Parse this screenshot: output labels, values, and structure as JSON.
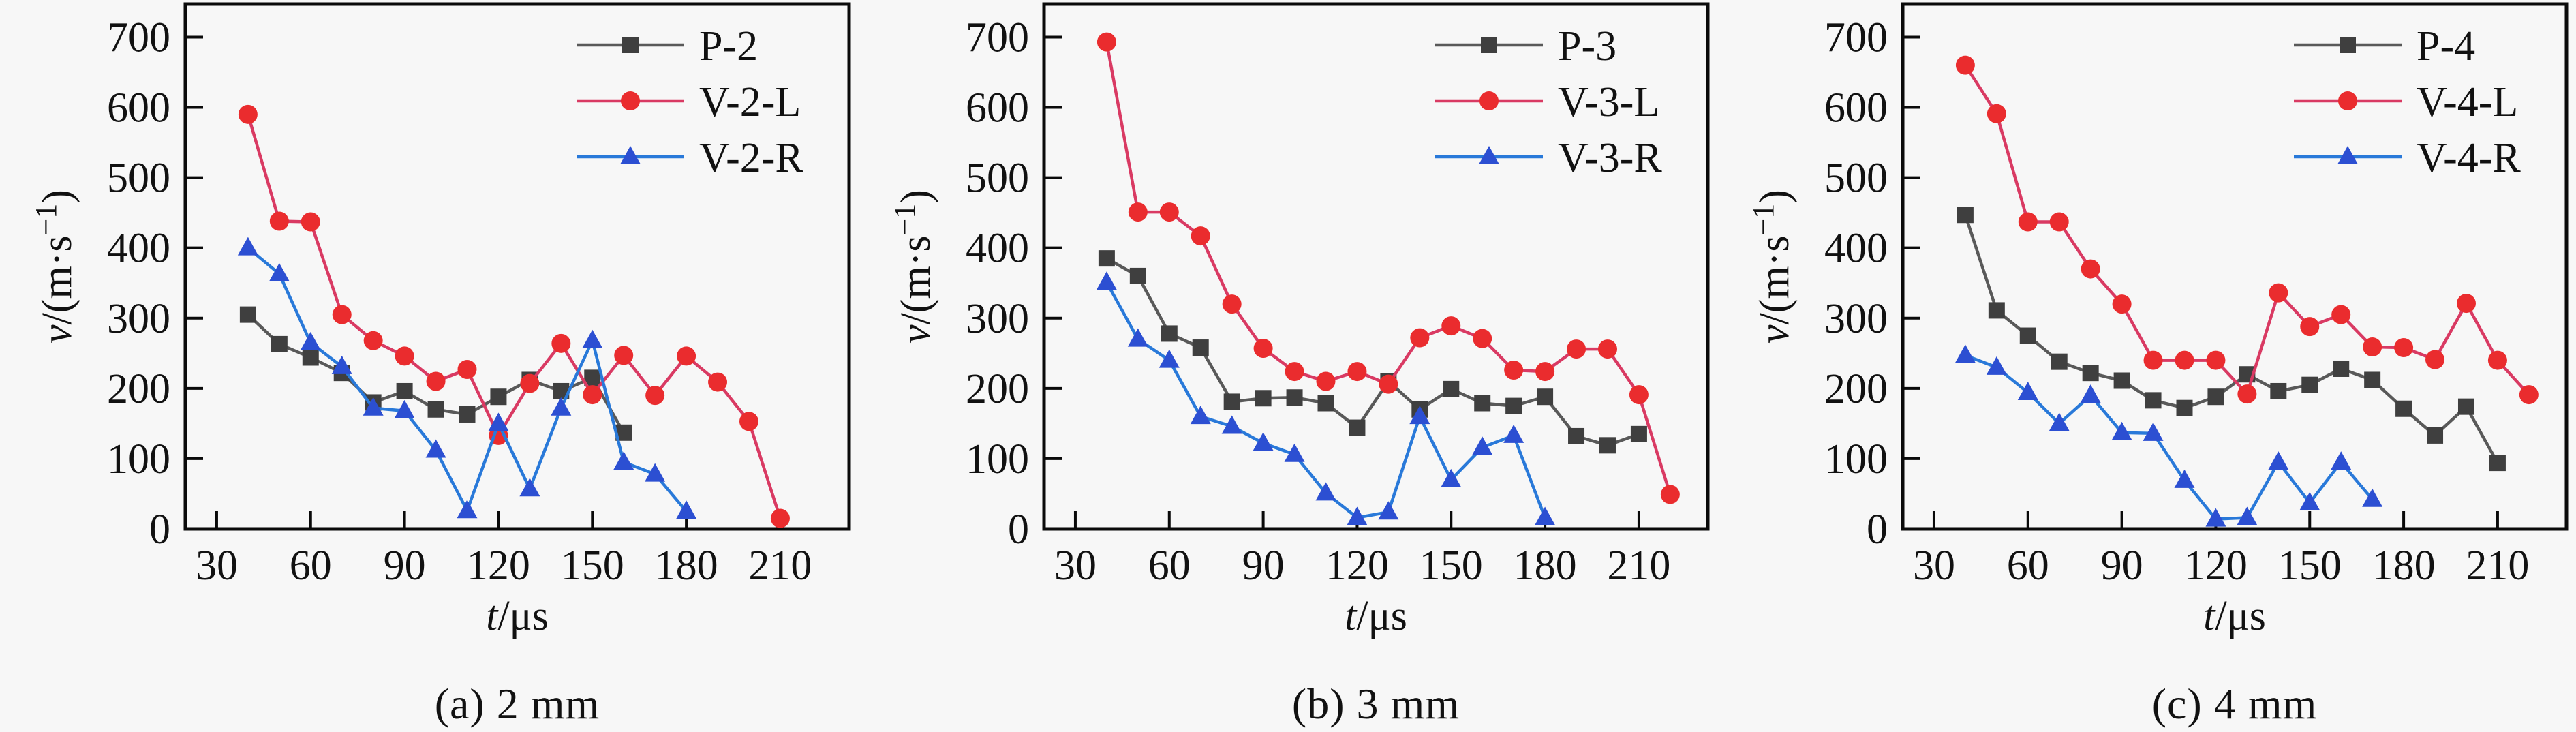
{
  "page": {
    "background": "#f7f7f7",
    "axis_color": "#0a0a0a",
    "text_color": "#111111"
  },
  "chart_data": [
    {
      "id": "a",
      "type": "line",
      "caption": "(a) 2 mm",
      "xlabel": "t/μs",
      "ylabel": "v/(m·s⁻¹)",
      "xlim": [
        20,
        232
      ],
      "ylim": [
        0,
        747
      ],
      "xticks": [
        30,
        60,
        90,
        120,
        150,
        180,
        210
      ],
      "yticks": [
        0,
        100,
        200,
        300,
        400,
        500,
        600,
        700
      ],
      "grid": false,
      "legend_position": "top-right",
      "series": [
        {
          "name": "P-2",
          "marker": "square",
          "line_color": "#595959",
          "marker_color": "#3f3f3f",
          "x": [
            40,
            50,
            60,
            70,
            80,
            90,
            100,
            110,
            120,
            130,
            140,
            150,
            160
          ],
          "y": [
            305,
            263,
            244,
            222,
            180,
            196,
            170,
            163,
            188,
            212,
            196,
            215,
            137
          ]
        },
        {
          "name": "V-2-L",
          "marker": "circle",
          "line_color": "#d93a63",
          "marker_color": "#ea2c2e",
          "x": [
            40,
            50,
            60,
            70,
            80,
            90,
            100,
            110,
            120,
            130,
            140,
            150,
            160,
            170,
            180,
            190,
            200,
            210
          ],
          "y": [
            590,
            438,
            437,
            305,
            268,
            246,
            210,
            227,
            133,
            207,
            264,
            191,
            247,
            190,
            246,
            209,
            153,
            15
          ]
        },
        {
          "name": "V-2-R",
          "marker": "triangle",
          "line_color": "#2979d9",
          "marker_color": "#2c4fd2",
          "x": [
            40,
            50,
            60,
            70,
            80,
            90,
            100,
            110,
            120,
            130,
            140,
            150,
            160,
            170,
            180
          ],
          "y": [
            400,
            363,
            265,
            231,
            172,
            168,
            112,
            26,
            150,
            57,
            172,
            268,
            95,
            78,
            25
          ]
        }
      ]
    },
    {
      "id": "b",
      "type": "line",
      "caption": "(b) 3 mm",
      "xlabel": "t/μs",
      "ylabel": "v/(m·s⁻¹)",
      "xlim": [
        20,
        232
      ],
      "ylim": [
        0,
        747
      ],
      "xticks": [
        30,
        60,
        90,
        120,
        150,
        180,
        210
      ],
      "yticks": [
        0,
        100,
        200,
        300,
        400,
        500,
        600,
        700
      ],
      "grid": false,
      "legend_position": "top-right",
      "series": [
        {
          "name": "P-3",
          "marker": "square",
          "line_color": "#595959",
          "marker_color": "#3f3f3f",
          "x": [
            40,
            50,
            60,
            70,
            80,
            90,
            100,
            110,
            120,
            130,
            140,
            150,
            160,
            170,
            180,
            190,
            200,
            210
          ],
          "y": [
            385,
            360,
            278,
            258,
            181,
            186,
            187,
            179,
            144,
            210,
            170,
            199,
            179,
            175,
            188,
            132,
            119,
            135
          ]
        },
        {
          "name": "V-3-L",
          "marker": "circle",
          "line_color": "#d93a63",
          "marker_color": "#ea2c2e",
          "x": [
            40,
            50,
            60,
            70,
            80,
            90,
            100,
            110,
            120,
            130,
            140,
            150,
            160,
            170,
            180,
            190,
            200,
            210,
            220
          ],
          "y": [
            693,
            451,
            451,
            417,
            320,
            257,
            224,
            210,
            224,
            206,
            272,
            289,
            271,
            226,
            224,
            256,
            256,
            191,
            49
          ]
        },
        {
          "name": "V-3-R",
          "marker": "triangle",
          "line_color": "#2979d9",
          "marker_color": "#2c4fd2",
          "x": [
            40,
            50,
            60,
            70,
            80,
            90,
            100,
            110,
            120,
            130,
            140,
            150,
            160,
            170,
            180
          ],
          "y": [
            351,
            270,
            240,
            160,
            146,
            122,
            106,
            51,
            16,
            24,
            160,
            70,
            116,
            133,
            16
          ]
        }
      ]
    },
    {
      "id": "c",
      "type": "line",
      "caption": "(c) 4 mm",
      "xlabel": "t/μs",
      "ylabel": "v/(m·s⁻¹)",
      "xlim": [
        20,
        232
      ],
      "ylim": [
        0,
        747
      ],
      "xticks": [
        30,
        60,
        90,
        120,
        150,
        180,
        210
      ],
      "yticks": [
        0,
        100,
        200,
        300,
        400,
        500,
        600,
        700
      ],
      "grid": false,
      "legend_position": "top-right",
      "series": [
        {
          "name": "P-4",
          "marker": "square",
          "line_color": "#595959",
          "marker_color": "#3f3f3f",
          "x": [
            40,
            50,
            60,
            70,
            80,
            90,
            100,
            110,
            120,
            130,
            140,
            150,
            160,
            170,
            180,
            190,
            200,
            210
          ],
          "y": [
            447,
            311,
            275,
            238,
            222,
            211,
            183,
            172,
            188,
            220,
            196,
            205,
            228,
            212,
            171,
            133,
            174,
            94
          ]
        },
        {
          "name": "V-4-L",
          "marker": "circle",
          "line_color": "#d93a63",
          "marker_color": "#ea2c2e",
          "x": [
            40,
            50,
            60,
            70,
            80,
            90,
            100,
            110,
            120,
            130,
            140,
            150,
            160,
            170,
            180,
            190,
            200,
            210,
            220
          ],
          "y": [
            660,
            591,
            437,
            437,
            370,
            320,
            240,
            240,
            240,
            192,
            336,
            288,
            305,
            259,
            258,
            241,
            321,
            240,
            191
          ]
        },
        {
          "name": "V-4-R",
          "marker": "triangle",
          "line_color": "#2979d9",
          "marker_color": "#2c4fd2",
          "x": [
            40,
            50,
            60,
            70,
            80,
            90,
            100,
            110,
            120,
            130,
            140,
            150,
            160,
            170
          ],
          "y": [
            247,
            230,
            194,
            150,
            190,
            137,
            136,
            69,
            14,
            16,
            95,
            37,
            95,
            42
          ]
        }
      ]
    }
  ]
}
